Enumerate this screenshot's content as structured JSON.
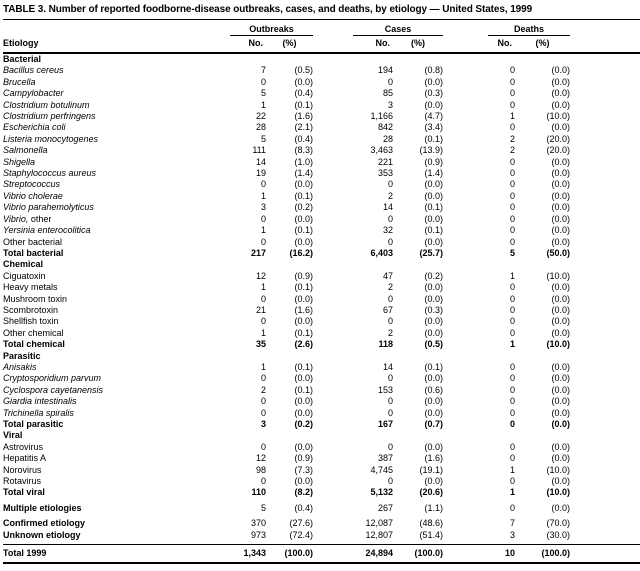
{
  "title": "TABLE 3. Number of reported foodborne-disease outbreaks, cases, and deaths, by etiology — United States, 1999",
  "table": {
    "etiology_header": "Etiology",
    "column_groups": [
      {
        "label": "Outbreaks",
        "sub": [
          "No.",
          "(%)"
        ]
      },
      {
        "label": "Cases",
        "sub": [
          "No.",
          "(%)"
        ]
      },
      {
        "label": "Deaths",
        "sub": [
          "No.",
          "(%)"
        ]
      }
    ],
    "sections": [
      {
        "header": "Bacterial",
        "rows": [
          {
            "label": "Bacillus cereus",
            "italic": true,
            "values": [
              "7",
              "(0.5)",
              "194",
              "(0.8)",
              "0",
              "(0.0)"
            ]
          },
          {
            "label": "Brucella",
            "italic": true,
            "values": [
              "0",
              "(0.0)",
              "0",
              "(0.0)",
              "0",
              "(0.0)"
            ]
          },
          {
            "label": "Campylobacter",
            "italic": true,
            "values": [
              "5",
              "(0.4)",
              "85",
              "(0.3)",
              "0",
              "(0.0)"
            ]
          },
          {
            "label": "Clostridium botulinum",
            "italic": true,
            "values": [
              "1",
              "(0.1)",
              "3",
              "(0.0)",
              "0",
              "(0.0)"
            ]
          },
          {
            "label": "Clostridium perfringens",
            "italic": true,
            "values": [
              "22",
              "(1.6)",
              "1,166",
              "(4.7)",
              "1",
              "(10.0)"
            ]
          },
          {
            "label": "Escherichia coli",
            "italic": true,
            "values": [
              "28",
              "(2.1)",
              "842",
              "(3.4)",
              "0",
              "(0.0)"
            ]
          },
          {
            "label": "Listeria monocytogenes",
            "italic": true,
            "values": [
              "5",
              "(0.4)",
              "28",
              "(0.1)",
              "2",
              "(20.0)"
            ]
          },
          {
            "label": "Salmonella",
            "italic": true,
            "values": [
              "111",
              "(8.3)",
              "3,463",
              "(13.9)",
              "2",
              "(20.0)"
            ]
          },
          {
            "label": "Shigella",
            "italic": true,
            "values": [
              "14",
              "(1.0)",
              "221",
              "(0.9)",
              "0",
              "(0.0)"
            ]
          },
          {
            "label": "Staphylococcus aureus",
            "italic": true,
            "values": [
              "19",
              "(1.4)",
              "353",
              "(1.4)",
              "0",
              "(0.0)"
            ]
          },
          {
            "label": "Streptococcus",
            "italic": true,
            "values": [
              "0",
              "(0.0)",
              "0",
              "(0.0)",
              "0",
              "(0.0)"
            ]
          },
          {
            "label": "Vibrio cholerae",
            "italic": true,
            "values": [
              "1",
              "(0.1)",
              "2",
              "(0.0)",
              "0",
              "(0.0)"
            ]
          },
          {
            "label": "Vibrio parahemolyticus",
            "italic": true,
            "values": [
              "3",
              "(0.2)",
              "14",
              "(0.1)",
              "0",
              "(0.0)"
            ]
          },
          {
            "label": "Vibrio, other",
            "parts": [
              {
                "text": "Vibrio,",
                "italic": true
              },
              {
                "text": " other",
                "italic": false
              }
            ],
            "values": [
              "0",
              "(0.0)",
              "0",
              "(0.0)",
              "0",
              "(0.0)"
            ]
          },
          {
            "label": "Yersinia enterocolitica",
            "italic": true,
            "values": [
              "1",
              "(0.1)",
              "32",
              "(0.1)",
              "0",
              "(0.0)"
            ]
          },
          {
            "label": "Other bacterial",
            "values": [
              "0",
              "(0.0)",
              "0",
              "(0.0)",
              "0",
              "(0.0)"
            ]
          },
          {
            "label": "Total bacterial",
            "bold": true,
            "values": [
              "217",
              "(16.2)",
              "6,403",
              "(25.7)",
              "5",
              "(50.0)"
            ]
          }
        ]
      },
      {
        "header": "Chemical",
        "rows": [
          {
            "label": "Ciguatoxin",
            "values": [
              "12",
              "(0.9)",
              "47",
              "(0.2)",
              "1",
              "(10.0)"
            ]
          },
          {
            "label": "Heavy metals",
            "values": [
              "1",
              "(0.1)",
              "2",
              "(0.0)",
              "0",
              "(0.0)"
            ]
          },
          {
            "label": "Mushroom toxin",
            "values": [
              "0",
              "(0.0)",
              "0",
              "(0.0)",
              "0",
              "(0.0)"
            ]
          },
          {
            "label": "Scombrotoxin",
            "values": [
              "21",
              "(1.6)",
              "67",
              "(0.3)",
              "0",
              "(0.0)"
            ]
          },
          {
            "label": "Shellfish toxin",
            "values": [
              "0",
              "(0.0)",
              "0",
              "(0.0)",
              "0",
              "(0.0)"
            ]
          },
          {
            "label": "Other chemical",
            "values": [
              "1",
              "(0.1)",
              "2",
              "(0.0)",
              "0",
              "(0.0)"
            ]
          },
          {
            "label": "Total chemical",
            "bold": true,
            "values": [
              "35",
              "(2.6)",
              "118",
              "(0.5)",
              "1",
              "(10.0)"
            ]
          }
        ]
      },
      {
        "header": "Parasitic",
        "rows": [
          {
            "label": "Anisakis",
            "italic": true,
            "values": [
              "1",
              "(0.1)",
              "14",
              "(0.1)",
              "0",
              "(0.0)"
            ]
          },
          {
            "label": "Cryptosporidium parvum",
            "italic": true,
            "values": [
              "0",
              "(0.0)",
              "0",
              "(0.0)",
              "0",
              "(0.0)"
            ]
          },
          {
            "label": "Cyclospora cayetanensis",
            "italic": true,
            "values": [
              "2",
              "(0.1)",
              "153",
              "(0.6)",
              "0",
              "(0.0)"
            ]
          },
          {
            "label": "Giardia intestinalis",
            "italic": true,
            "values": [
              "0",
              "(0.0)",
              "0",
              "(0.0)",
              "0",
              "(0.0)"
            ]
          },
          {
            "label": "Trichinella spiralis",
            "italic": true,
            "values": [
              "0",
              "(0.0)",
              "0",
              "(0.0)",
              "0",
              "(0.0)"
            ]
          },
          {
            "label": "Total parasitic",
            "bold": true,
            "values": [
              "3",
              "(0.2)",
              "167",
              "(0.7)",
              "0",
              "(0.0)"
            ]
          }
        ]
      },
      {
        "header": "Viral",
        "rows": [
          {
            "label": "Astrovirus",
            "values": [
              "0",
              "(0.0)",
              "0",
              "(0.0)",
              "0",
              "(0.0)"
            ]
          },
          {
            "label": "Hepatitis A",
            "values": [
              "12",
              "(0.9)",
              "387",
              "(1.6)",
              "0",
              "(0.0)"
            ]
          },
          {
            "label": "Norovirus",
            "values": [
              "98",
              "(7.3)",
              "4,745",
              "(19.1)",
              "1",
              "(10.0)"
            ]
          },
          {
            "label": "Rotavirus",
            "values": [
              "0",
              "(0.0)",
              "0",
              "(0.0)",
              "0",
              "(0.0)"
            ]
          },
          {
            "label": "Total viral",
            "bold": true,
            "values": [
              "110",
              "(8.2)",
              "5,132",
              "(20.6)",
              "1",
              "(10.0)"
            ]
          }
        ]
      }
    ],
    "footer_groups": [
      {
        "rows": [
          {
            "label": "Multiple etiologies",
            "bold_label": true,
            "values": [
              "5",
              "(0.4)",
              "267",
              "(1.1)",
              "0",
              "(0.0)"
            ]
          }
        ]
      },
      {
        "rows": [
          {
            "label": "Confirmed etiology",
            "bold_label": true,
            "values": [
              "370",
              "(27.6)",
              "12,087",
              "(48.6)",
              "7",
              "(70.0)"
            ]
          },
          {
            "label": "Unknown etiology",
            "bold_label": true,
            "pre_rule_gap": true,
            "values": [
              "973",
              "(72.4)",
              "12,807",
              "(51.4)",
              "3",
              "(30.0)"
            ]
          }
        ]
      },
      {
        "rows": [
          {
            "label": "Total 1999",
            "bold": true,
            "grand_total": true,
            "values": [
              "1,343",
              "(100.0)",
              "24,894",
              "(100.0)",
              "10",
              "(100.0)"
            ]
          }
        ]
      }
    ]
  }
}
